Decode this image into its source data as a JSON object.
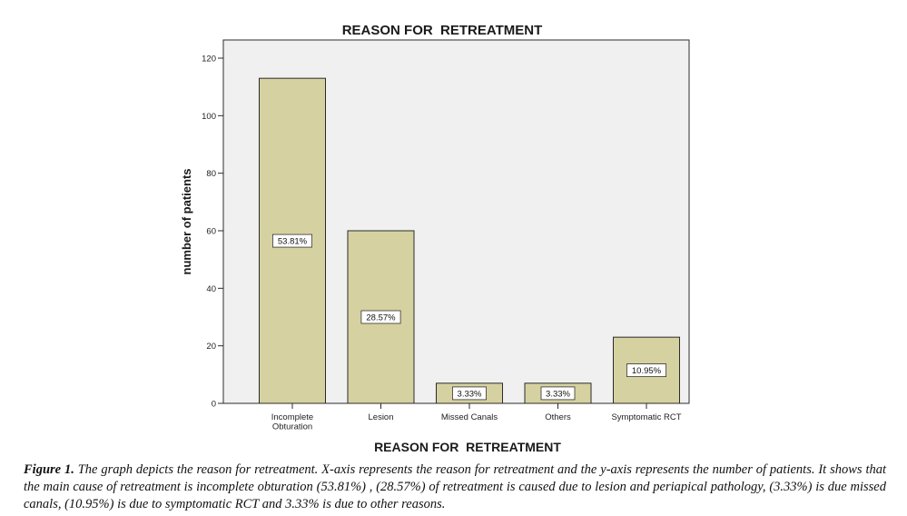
{
  "chart_data": {
    "type": "bar",
    "title": "REASON FOR  RETREATMENT",
    "xlabel": "REASON FOR  RETREATMENT",
    "ylabel": "number of patients",
    "categories": [
      "Incomplete Obturation",
      "Lesion",
      "Missed Canals",
      "Others",
      "Symptomatic RCT"
    ],
    "category_lines": [
      [
        "Incomplete",
        "Obturation"
      ],
      [
        "Lesion"
      ],
      [
        "Missed Canals"
      ],
      [
        "Others"
      ],
      [
        "Symptomatic RCT"
      ]
    ],
    "values": [
      113,
      60,
      7,
      7,
      23
    ],
    "data_labels": [
      "53.81%",
      "28.57%",
      "3.33%",
      "3.33%",
      "10.95%"
    ],
    "ylim": [
      0,
      125
    ],
    "yticks": [
      0,
      20,
      40,
      60,
      80,
      100,
      120
    ],
    "grid": false,
    "colors": {
      "plot_bg": "#f0f0f0",
      "bar_fill": "#d6d1a0",
      "bar_stroke": "#2b2b2b",
      "label_bg": "#ffffff"
    }
  },
  "caption": {
    "label": "Figure 1.",
    "text": " The graph depicts the reason for retreatment. X-axis represents the reason for retreatment and the y-axis represents the number of patients. It shows that the main cause of retreatment is incomplete obturation (53.81%) , (28.57%) of retreatment is caused due to lesion and periapical pathology, (3.33%) is due missed canals, (10.95%) is due to symptomatic RCT and 3.33% is due to other reasons."
  }
}
